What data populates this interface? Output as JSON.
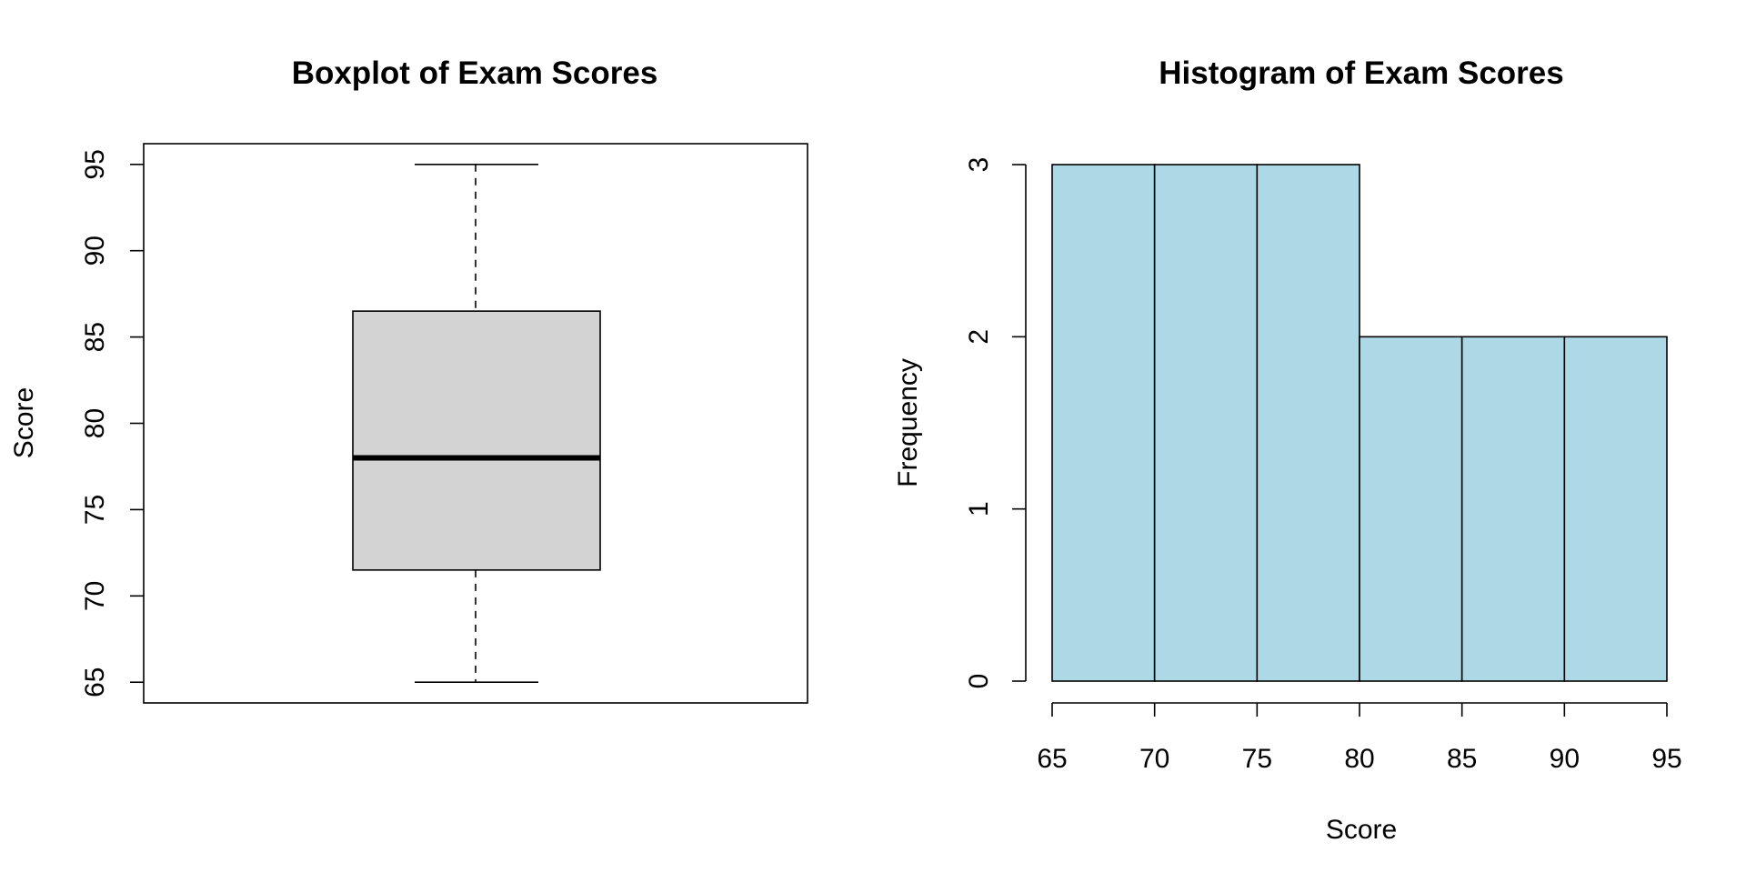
{
  "chart_data": [
    {
      "type": "box",
      "title": "Boxplot of Exam Scores",
      "xlabel": "",
      "ylabel": "Score",
      "ylim": [
        63.8,
        96.2
      ],
      "yticks": [
        65,
        70,
        75,
        80,
        85,
        90,
        95
      ],
      "ytick_labels": [
        "65",
        "70",
        "75",
        "80",
        "85",
        "90",
        "95"
      ],
      "stats": {
        "min": 65,
        "q1": 71.5,
        "median": 78,
        "q3": 86.5,
        "max": 95
      },
      "colors": {
        "box_fill": "#d3d3d3"
      },
      "grid": false
    },
    {
      "type": "bar",
      "title": "Histogram of Exam Scores",
      "xlabel": "Score",
      "ylabel": "Frequency",
      "bins": [
        [
          65,
          70
        ],
        [
          70,
          75
        ],
        [
          75,
          80
        ],
        [
          80,
          85
        ],
        [
          85,
          90
        ],
        [
          90,
          95
        ]
      ],
      "values": [
        3,
        3,
        3,
        2,
        2,
        2
      ],
      "xlim": [
        65,
        95
      ],
      "ylim": [
        0,
        3
      ],
      "xticks": [
        65,
        70,
        75,
        80,
        85,
        90,
        95
      ],
      "xtick_labels": [
        "65",
        "70",
        "75",
        "80",
        "85",
        "90",
        "95"
      ],
      "yticks": [
        0,
        1,
        2,
        3
      ],
      "ytick_labels": [
        "0",
        "1",
        "2",
        "3"
      ],
      "colors": {
        "bar_fill": "#add8e6"
      },
      "grid": false
    }
  ]
}
